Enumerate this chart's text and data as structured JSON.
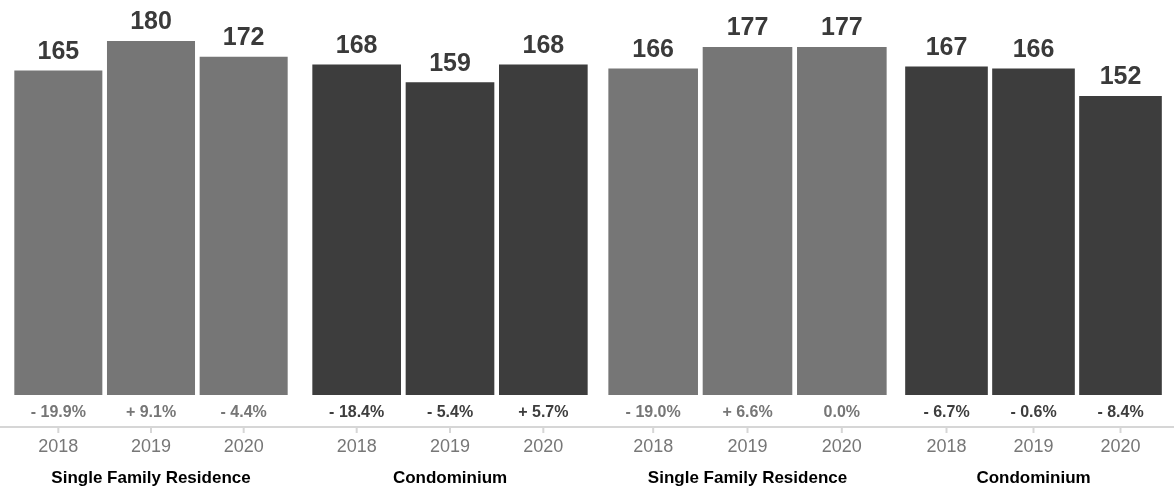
{
  "chart_data": [
    {
      "type": "bar",
      "xlabel": "Single Family Residence",
      "categories": [
        "2018",
        "2019",
        "2020"
      ],
      "values": [
        165,
        180,
        172
      ],
      "color": "#767676",
      "data_labels": true,
      "annotations": [
        {
          "text": "- 19.9%",
          "x": "2018",
          "y": 0
        },
        {
          "text": "+ 9.1%",
          "x": "2019",
          "y": 0
        },
        {
          "text": "- 4.4%",
          "x": "2020",
          "y": 0
        }
      ]
    },
    {
      "type": "bar",
      "xlabel": "Condominium",
      "categories": [
        "2018",
        "2019",
        "2020"
      ],
      "values": [
        168,
        159,
        168
      ],
      "color": "#3d3d3d",
      "data_labels": true,
      "annotations": [
        {
          "text": "- 18.4%",
          "x": "2018",
          "y": 0
        },
        {
          "text": "- 5.4%",
          "x": "2019",
          "y": 0
        },
        {
          "text": "+ 5.7%",
          "x": "2020",
          "y": 0
        }
      ]
    },
    {
      "type": "bar",
      "xlabel": "Single Family Residence",
      "categories": [
        "2018",
        "2019",
        "2020"
      ],
      "values": [
        166,
        177,
        177
      ],
      "color": "#767676",
      "data_labels": true,
      "annotations": [
        {
          "text": "- 19.0%",
          "x": "2018",
          "y": 0
        },
        {
          "text": "+ 6.6%",
          "x": "2019",
          "y": 0
        },
        {
          "text": "0.0%",
          "x": "2020",
          "y": 0
        }
      ]
    },
    {
      "type": "bar",
      "xlabel": "Condominium",
      "categories": [
        "2018",
        "2019",
        "2020"
      ],
      "values": [
        167,
        166,
        152
      ],
      "color": "#3d3d3d",
      "data_labels": true,
      "annotations": [
        {
          "text": "- 6.7%",
          "x": "2018",
          "y": 0
        },
        {
          "text": "- 0.6%",
          "x": "2019",
          "y": 0
        },
        {
          "text": "- 8.4%",
          "x": "2020",
          "y": 0
        }
      ]
    }
  ]
}
